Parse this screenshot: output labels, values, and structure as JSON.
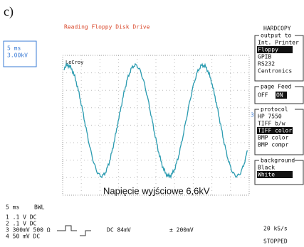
{
  "label": "c)",
  "title": "Reading Floppy Disk Drive",
  "timebase_box": {
    "time": "5 ms",
    "volts": "3.00kV"
  },
  "brand": "LeCroy",
  "menu": {
    "header": "HARDCOPY",
    "output_to": {
      "title": "output to",
      "items": [
        "Int. Printer",
        "Floppy",
        "GPIB",
        "RS232",
        "Centronics"
      ]
    },
    "page_feed": {
      "title": "page Feed",
      "items": [
        "OFF",
        "ON"
      ]
    },
    "protocol": {
      "title": "protocol",
      "items": [
        "HP 7550",
        "TIFF b/w",
        "TIFF color",
        "BMP color",
        "BMP compr"
      ]
    },
    "background": {
      "title": "background",
      "items": [
        "Black",
        "White"
      ]
    }
  },
  "channel_marker": "3",
  "annotation": "Napięcie wyjściowe 6,6kV",
  "footer": {
    "time": "5 ms",
    "bwl": "BWL",
    "channels": [
      "1  .1  V  DC",
      "2  .1  V  DC",
      "3 300mV 500 Ω",
      "4  50 mV  DC"
    ],
    "trigger": "DC 84mV",
    "offset": "± 200mV",
    "rate": "20 kS/s",
    "status": "STOPPED"
  }
}
